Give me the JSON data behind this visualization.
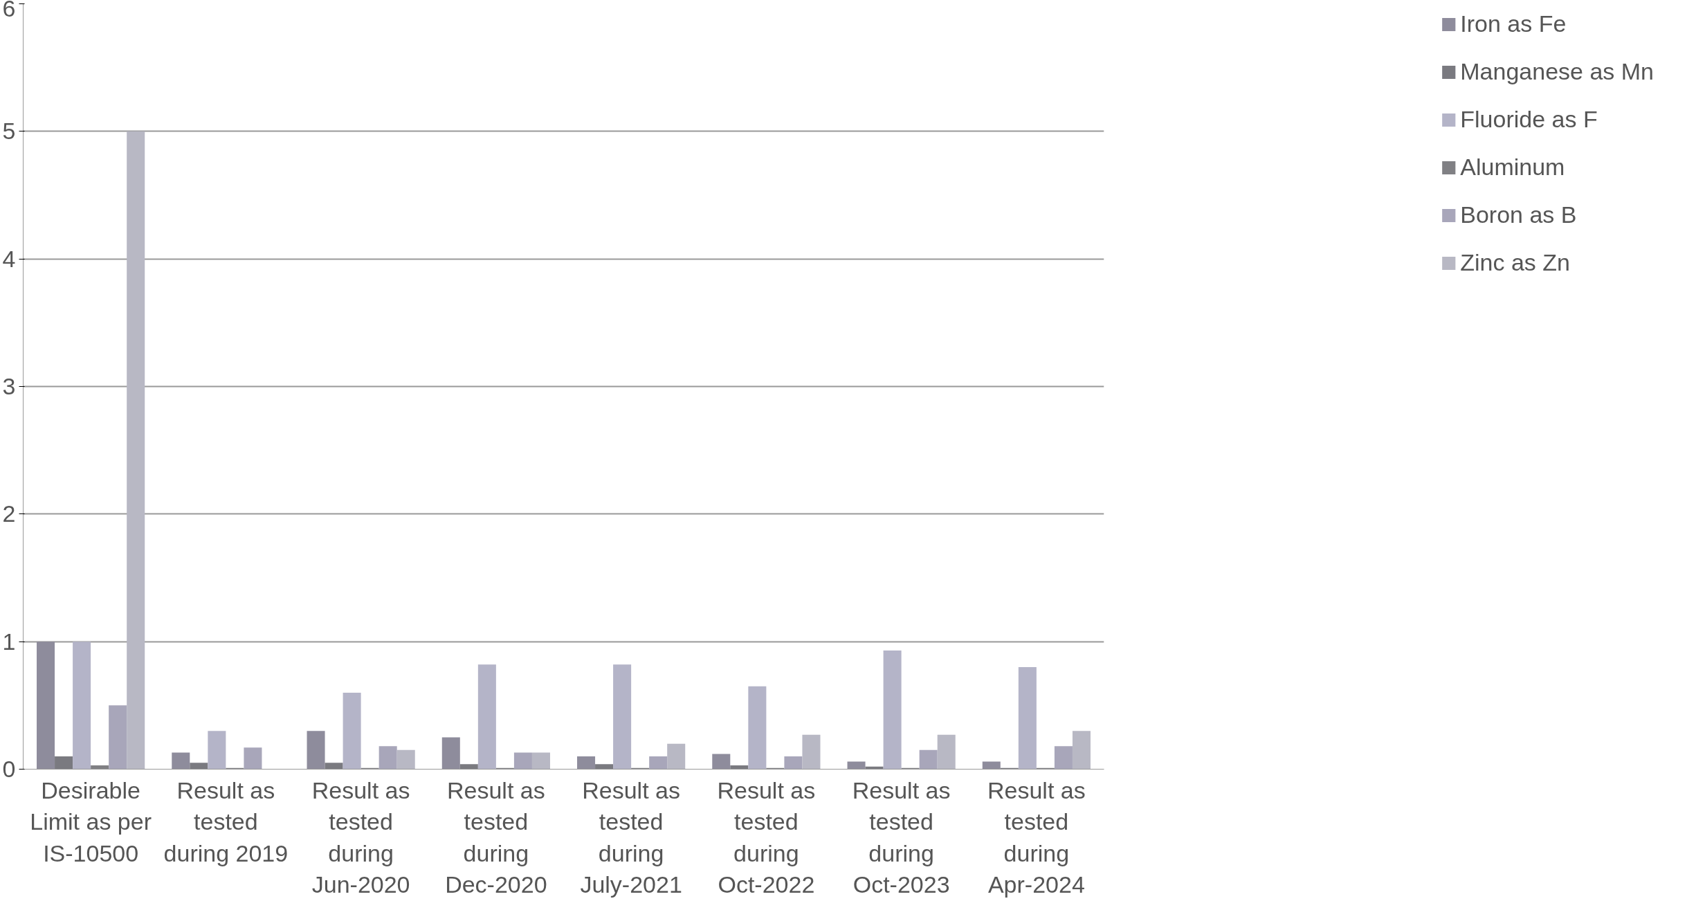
{
  "chart_data": {
    "type": "bar",
    "categories": [
      "Desirable Limit as per IS-10500",
      "Result as tested during 2019",
      "Result as tested during Jun-2020",
      "Result as tested during Dec-2020",
      "Result as tested during July-2021",
      "Result as tested during Oct-2022",
      "Result as tested during Oct-2023",
      "Result as tested during Apr-2024"
    ],
    "series": [
      {
        "name": "Iron as Fe",
        "color": "#8e8c9c",
        "values": [
          1,
          0.13,
          0.3,
          0.25,
          0.1,
          0.12,
          0.06,
          0.06
        ]
      },
      {
        "name": "Manganese as Mn",
        "color": "#7a7a80",
        "values": [
          0.1,
          0.05,
          0.05,
          0.04,
          0.04,
          0.03,
          0.02,
          0.01
        ]
      },
      {
        "name": "Fluoride as F",
        "color": "#b4b4c8",
        "values": [
          1,
          0.3,
          0.6,
          0.82,
          0.82,
          0.65,
          0.93,
          0.8
        ]
      },
      {
        "name": "Aluminum",
        "color": "#808084",
        "values": [
          0.03,
          0.01,
          0.01,
          0.01,
          0.01,
          0.01,
          0.01,
          0.01
        ]
      },
      {
        "name": "Boron as B",
        "color": "#a8a6ba",
        "values": [
          0.5,
          0.17,
          0.18,
          0.13,
          0.1,
          0.1,
          0.15,
          0.18
        ]
      },
      {
        "name": "Zinc as Zn",
        "color": "#b8b8c4",
        "values": [
          5,
          0,
          0.15,
          0.13,
          0.2,
          0.27,
          0.27,
          0.3
        ]
      }
    ],
    "ylim": [
      0,
      6
    ],
    "yticks": [
      0,
      1,
      2,
      3,
      4,
      5,
      6
    ],
    "grid": "y",
    "legend": "right"
  }
}
